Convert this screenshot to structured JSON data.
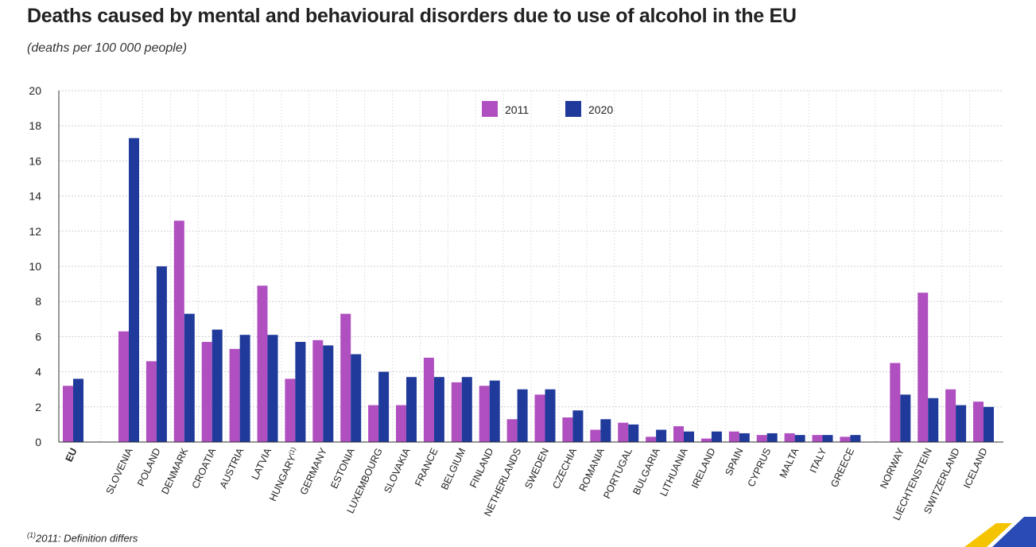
{
  "title": "Deaths caused by mental and behavioural disorders due to use of alcohol in the EU",
  "subtitle": "(deaths per 100 000 people)",
  "footnote": {
    "marker": "(1)",
    "text": "2011: Definition differs"
  },
  "colors": {
    "series_2011": "#b04fc0",
    "series_2020": "#1f3a9a",
    "grid": "#cfcfcf"
  },
  "chart_data": {
    "type": "bar",
    "title": "Deaths caused by mental and behavioural disorders due to use of alcohol in the EU",
    "subtitle": "(deaths per 100 000 people)",
    "xlabel": "",
    "ylabel": "",
    "ylim": [
      0,
      20
    ],
    "yticks": [
      0,
      2,
      4,
      6,
      8,
      10,
      12,
      14,
      16,
      18,
      20
    ],
    "grid": true,
    "legend_position": "top-center",
    "categories": [
      "EU",
      "SLOVENIA",
      "POLAND",
      "DENMARK",
      "CROATIA",
      "AUSTRIA",
      "LATVIA",
      "HUNGARY(1)",
      "GERMANY",
      "ESTONIA",
      "LUXEMBOURG",
      "SLOVAKIA",
      "FRANCE",
      "BELGIUM",
      "FINLAND",
      "NETHERLANDS",
      "SWEDEN",
      "CZECHIA",
      "ROMANIA",
      "PORTUGAL",
      "BULGARIA",
      "LITHUANIA",
      "IRELAND",
      "SPAIN",
      "CYPRUS",
      "MALTA",
      "ITALY",
      "GREECE",
      "NORWAY",
      "LIECHTENSTEIN",
      "SWITZERLAND",
      "ICELAND"
    ],
    "series": [
      {
        "name": "2011",
        "values": [
          3.2,
          6.3,
          4.6,
          12.6,
          5.7,
          5.3,
          8.9,
          3.6,
          5.8,
          7.3,
          2.1,
          2.1,
          4.8,
          3.4,
          3.2,
          1.3,
          2.7,
          1.4,
          0.7,
          1.1,
          0.3,
          0.9,
          0.2,
          0.6,
          0.4,
          0.5,
          0.4,
          0.3,
          4.5,
          8.5,
          3.0,
          2.3
        ]
      },
      {
        "name": "2020",
        "values": [
          3.6,
          17.3,
          10.0,
          7.3,
          6.4,
          6.1,
          6.1,
          5.7,
          5.5,
          5.0,
          4.0,
          3.7,
          3.7,
          3.7,
          3.5,
          3.0,
          3.0,
          1.8,
          1.3,
          1.0,
          0.7,
          0.6,
          0.6,
          0.5,
          0.5,
          0.4,
          0.4,
          0.4,
          2.7,
          2.5,
          2.1,
          2.0
        ]
      }
    ]
  }
}
